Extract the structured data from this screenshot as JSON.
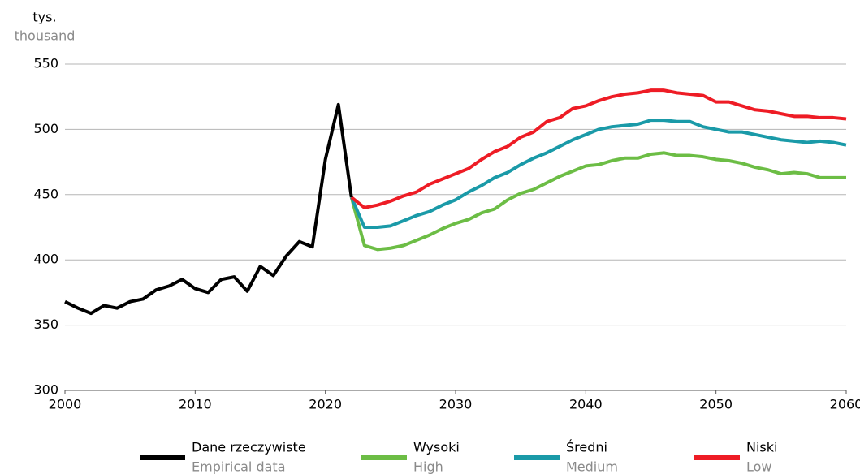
{
  "chart_data": {
    "type": "line",
    "y_label": "tys.",
    "y_label_en": "thousand",
    "xlim": [
      2000,
      2060
    ],
    "xticks": [
      2000,
      2010,
      2020,
      2030,
      2040,
      2050,
      2060
    ],
    "ylim": [
      300,
      550
    ],
    "yticks": [
      300,
      350,
      400,
      450,
      500,
      550
    ],
    "grid": true,
    "legend": "bottom",
    "series": [
      {
        "name": "Dane rzeczywiste",
        "name_en": "Empirical data",
        "color": "#000000",
        "x": [
          2000,
          2001,
          2002,
          2003,
          2004,
          2005,
          2006,
          2007,
          2008,
          2009,
          2010,
          2011,
          2012,
          2013,
          2014,
          2015,
          2016,
          2017,
          2018,
          2019,
          2020,
          2021,
          2022
        ],
        "values": [
          368,
          363,
          359,
          365,
          363,
          368,
          370,
          377,
          380,
          385,
          378,
          375,
          385,
          387,
          376,
          395,
          388,
          403,
          414,
          410,
          477,
          519,
          448
        ]
      },
      {
        "name": "Wysoki",
        "name_en": "High",
        "color": "#6cbd45",
        "x": [
          2022,
          2023,
          2024,
          2025,
          2026,
          2027,
          2028,
          2029,
          2030,
          2031,
          2032,
          2033,
          2034,
          2035,
          2036,
          2037,
          2038,
          2039,
          2040,
          2041,
          2042,
          2043,
          2044,
          2045,
          2046,
          2047,
          2048,
          2049,
          2050,
          2051,
          2052,
          2053,
          2054,
          2055,
          2056,
          2057,
          2058,
          2059,
          2060
        ],
        "values": [
          448,
          411,
          408,
          409,
          411,
          415,
          419,
          424,
          428,
          431,
          436,
          439,
          446,
          451,
          454,
          459,
          464,
          468,
          472,
          473,
          476,
          478,
          478,
          481,
          482,
          480,
          480,
          479,
          477,
          476,
          474,
          471,
          469,
          466,
          467,
          466,
          463,
          463,
          463
        ]
      },
      {
        "name": "Średni",
        "name_en": "Medium",
        "color": "#1a9aa8",
        "x": [
          2022,
          2023,
          2024,
          2025,
          2026,
          2027,
          2028,
          2029,
          2030,
          2031,
          2032,
          2033,
          2034,
          2035,
          2036,
          2037,
          2038,
          2039,
          2040,
          2041,
          2042,
          2043,
          2044,
          2045,
          2046,
          2047,
          2048,
          2049,
          2050,
          2051,
          2052,
          2053,
          2054,
          2055,
          2056,
          2057,
          2058,
          2059,
          2060
        ],
        "values": [
          448,
          425,
          425,
          426,
          430,
          434,
          437,
          442,
          446,
          452,
          457,
          463,
          467,
          473,
          478,
          482,
          487,
          492,
          496,
          500,
          502,
          503,
          504,
          507,
          507,
          506,
          506,
          502,
          500,
          498,
          498,
          496,
          494,
          492,
          491,
          490,
          491,
          490,
          488
        ]
      },
      {
        "name": "Niski",
        "name_en": "Low",
        "color": "#ee1c25",
        "x": [
          2022,
          2023,
          2024,
          2025,
          2026,
          2027,
          2028,
          2029,
          2030,
          2031,
          2032,
          2033,
          2034,
          2035,
          2036,
          2037,
          2038,
          2039,
          2040,
          2041,
          2042,
          2043,
          2044,
          2045,
          2046,
          2047,
          2048,
          2049,
          2050,
          2051,
          2052,
          2053,
          2054,
          2055,
          2056,
          2057,
          2058,
          2059,
          2060
        ],
        "values": [
          448,
          440,
          442,
          445,
          449,
          452,
          458,
          462,
          466,
          470,
          477,
          483,
          487,
          494,
          498,
          506,
          509,
          516,
          518,
          522,
          525,
          527,
          528,
          530,
          530,
          528,
          527,
          526,
          521,
          521,
          518,
          515,
          514,
          512,
          510,
          510,
          509,
          509,
          508
        ]
      }
    ]
  }
}
